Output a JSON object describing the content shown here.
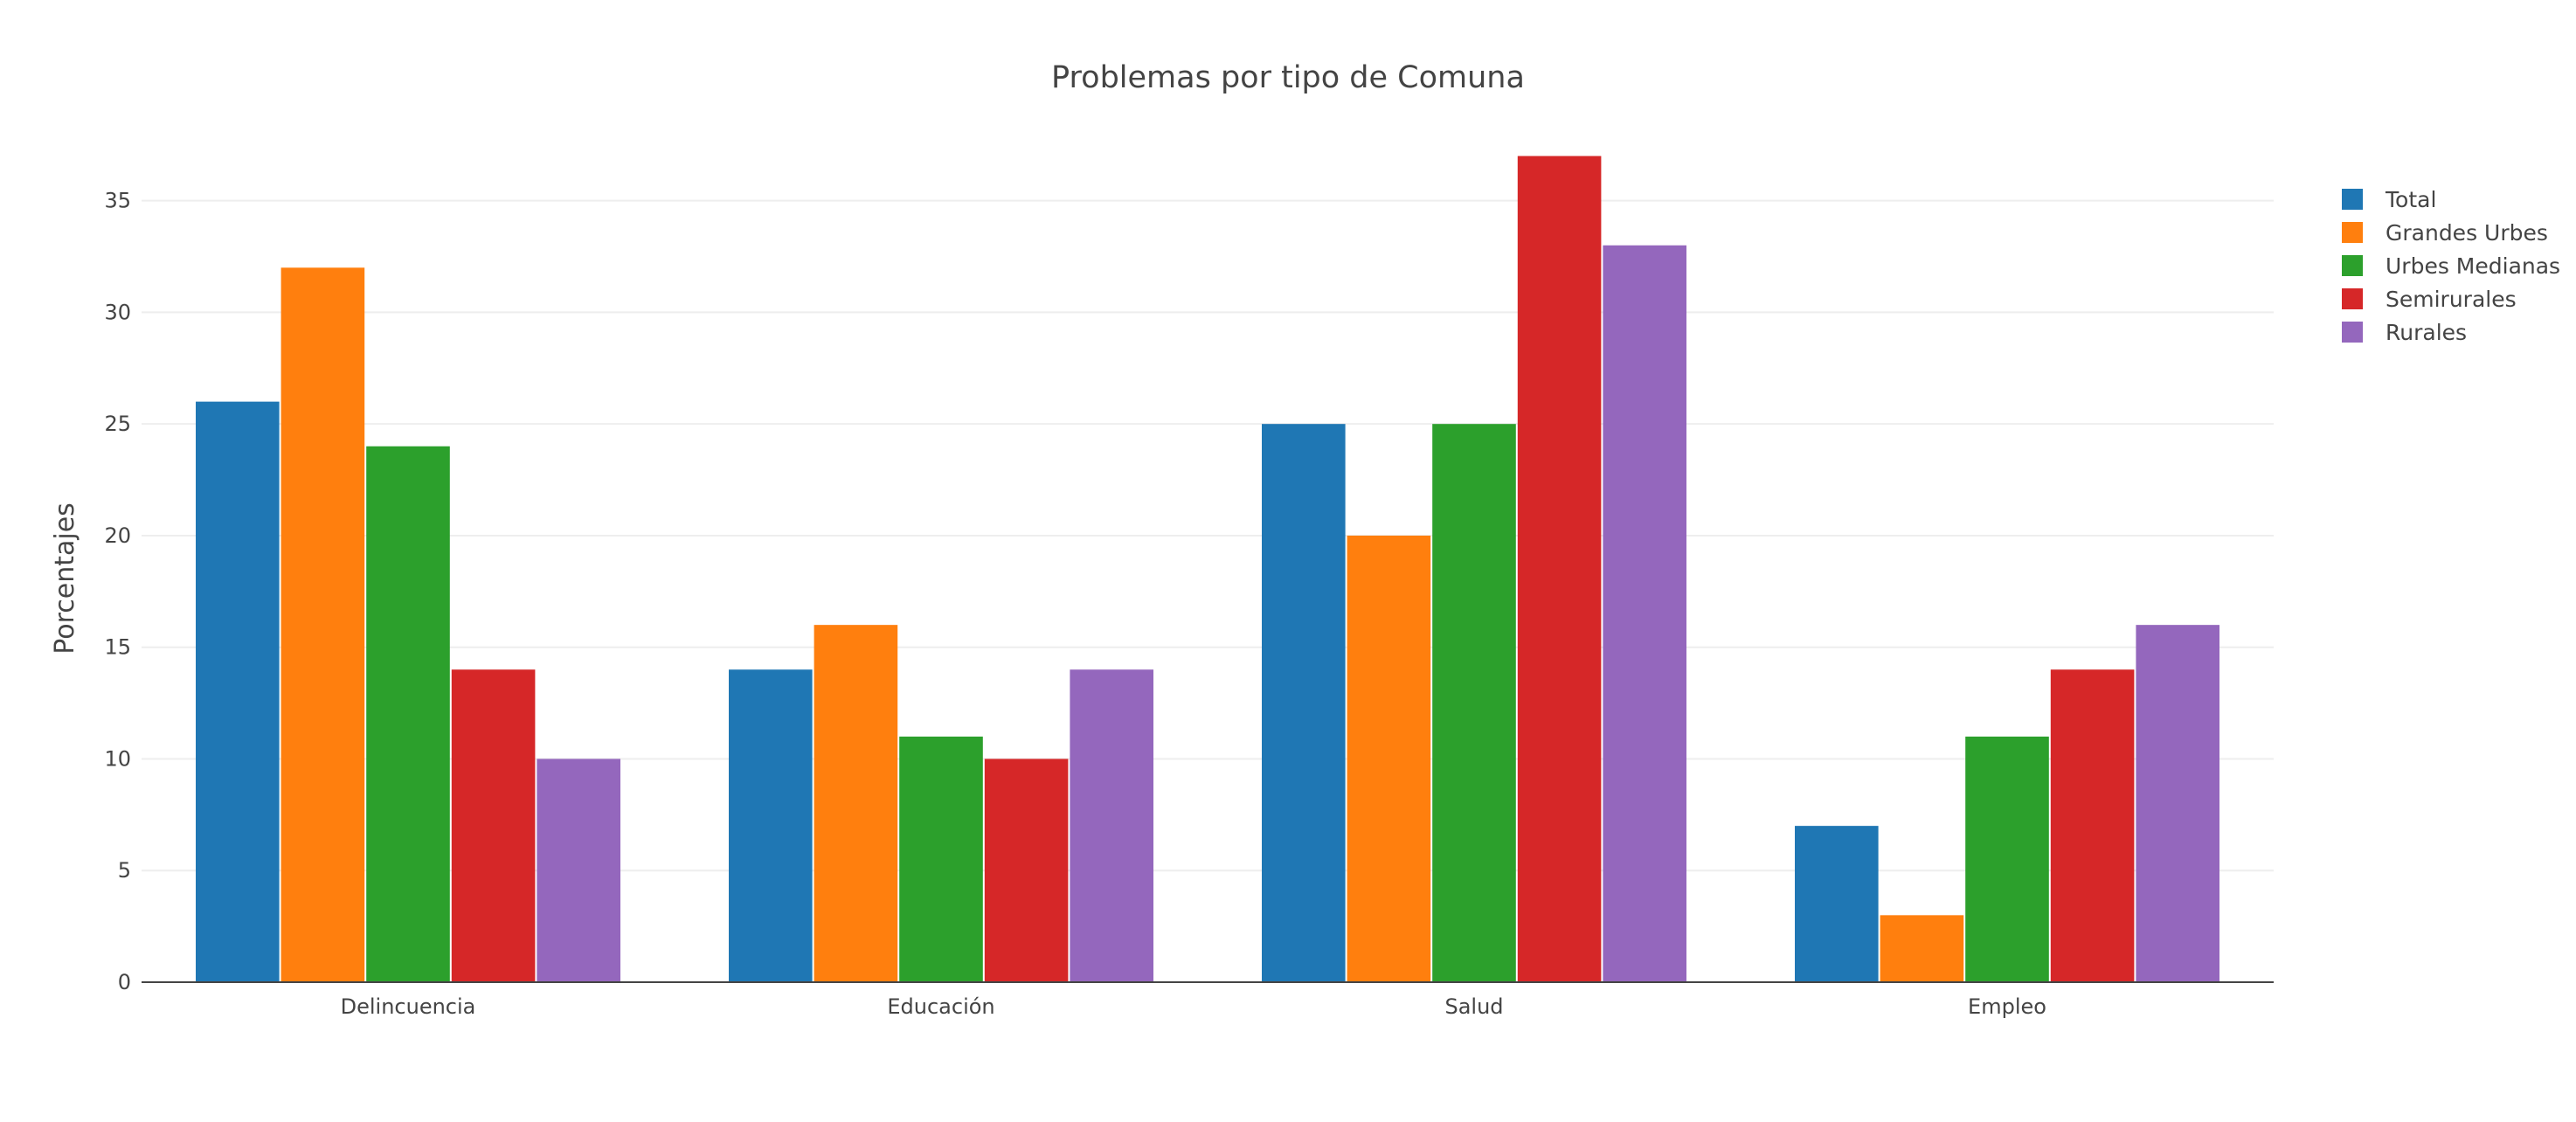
{
  "chart_data": {
    "type": "bar",
    "title": "Problemas por tipo de Comuna",
    "xlabel": "",
    "ylabel": "Porcentajes",
    "categories": [
      "Delincuencia",
      "Educación",
      "Salud",
      "Empleo"
    ],
    "series": [
      {
        "name": "Total",
        "color": "#1f77b4",
        "values": [
          26,
          14,
          25,
          7
        ]
      },
      {
        "name": "Grandes Urbes",
        "color": "#ff7f0e",
        "values": [
          32,
          16,
          20,
          3
        ]
      },
      {
        "name": "Urbes Medianas",
        "color": "#2ca02c",
        "values": [
          24,
          11,
          25,
          11
        ]
      },
      {
        "name": "Semirurales",
        "color": "#d62728",
        "values": [
          14,
          10,
          37,
          14
        ]
      },
      {
        "name": "Rurales",
        "color": "#9467bd",
        "values": [
          10,
          14,
          33,
          16
        ]
      }
    ],
    "ylim": [
      0,
      38.9
    ],
    "yticks": [
      0,
      5,
      10,
      15,
      20,
      25,
      30,
      35
    ],
    "grid": true,
    "legend_position": "top-right"
  }
}
